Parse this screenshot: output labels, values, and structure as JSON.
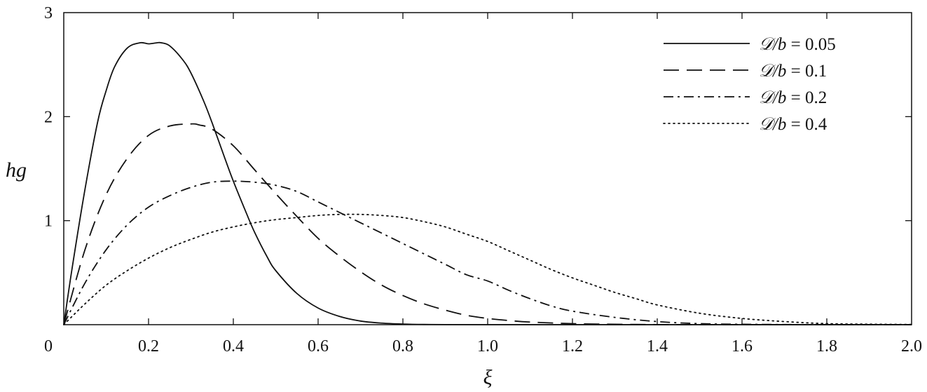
{
  "chart_data": {
    "type": "line",
    "title": "",
    "xlabel": "ξ",
    "ylabel": "hg",
    "xlim": [
      0,
      2.0
    ],
    "ylim": [
      0,
      3
    ],
    "grid": false,
    "legend_position": "top-right",
    "x_ticks": [
      {
        "value": 0,
        "label": "0"
      },
      {
        "value": 0.2,
        "label": "0.2"
      },
      {
        "value": 0.4,
        "label": "0.4"
      },
      {
        "value": 0.6,
        "label": "0.6"
      },
      {
        "value": 0.8,
        "label": "0.8"
      },
      {
        "value": 1.0,
        "label": "1.0"
      },
      {
        "value": 1.2,
        "label": "1.2"
      },
      {
        "value": 1.4,
        "label": "1.4"
      },
      {
        "value": 1.6,
        "label": "1.6"
      },
      {
        "value": 1.8,
        "label": "1.8"
      },
      {
        "value": 2.0,
        "label": "2.0"
      }
    ],
    "y_ticks": [
      {
        "value": 1,
        "label": "1"
      },
      {
        "value": 2,
        "label": "2"
      },
      {
        "value": 3,
        "label": "3"
      }
    ],
    "series": [
      {
        "name": "𝒟/b = 0.05",
        "legend_italic": "𝒟/b",
        "legend_value": " = 0.05",
        "dash": "solid",
        "x": [
          0,
          0.02,
          0.05,
          0.08,
          0.1,
          0.12,
          0.15,
          0.18,
          0.2,
          0.22,
          0.23,
          0.25,
          0.28,
          0.3,
          0.33,
          0.35,
          0.38,
          0.4,
          0.43,
          0.45,
          0.48,
          0.5,
          0.55,
          0.6,
          0.65,
          0.7,
          0.75,
          0.8,
          0.85,
          0.9,
          1.0,
          1.2,
          1.5,
          2.0
        ],
        "y": [
          0,
          0.55,
          1.3,
          1.95,
          2.25,
          2.48,
          2.66,
          2.71,
          2.7,
          2.71,
          2.71,
          2.68,
          2.55,
          2.42,
          2.15,
          1.94,
          1.6,
          1.38,
          1.08,
          0.89,
          0.65,
          0.52,
          0.3,
          0.16,
          0.08,
          0.035,
          0.015,
          0.006,
          0.002,
          0.001,
          0,
          0,
          0,
          0
        ]
      },
      {
        "name": "𝒟/b = 0.1",
        "legend_italic": "𝒟/b",
        "legend_value": " = 0.1",
        "dash": "dashed",
        "x": [
          0,
          0.05,
          0.1,
          0.15,
          0.2,
          0.25,
          0.3,
          0.32,
          0.35,
          0.4,
          0.45,
          0.5,
          0.55,
          0.6,
          0.65,
          0.7,
          0.75,
          0.8,
          0.85,
          0.9,
          0.95,
          1.0,
          1.05,
          1.1,
          1.2,
          1.3,
          1.4,
          1.5,
          1.6,
          2.0
        ],
        "y": [
          0,
          0.72,
          1.25,
          1.6,
          1.82,
          1.91,
          1.93,
          1.92,
          1.88,
          1.72,
          1.49,
          1.26,
          1.04,
          0.83,
          0.66,
          0.51,
          0.38,
          0.28,
          0.2,
          0.14,
          0.09,
          0.06,
          0.04,
          0.025,
          0.01,
          0.004,
          0.001,
          0,
          0,
          0
        ]
      },
      {
        "name": "𝒟/b = 0.2",
        "legend_italic": "𝒟/b",
        "legend_value": " = 0.2",
        "dash": "dashdot",
        "x": [
          0,
          0.05,
          0.1,
          0.15,
          0.2,
          0.25,
          0.3,
          0.35,
          0.4,
          0.45,
          0.5,
          0.55,
          0.6,
          0.65,
          0.7,
          0.75,
          0.8,
          0.85,
          0.9,
          0.95,
          1.0,
          1.05,
          1.1,
          1.15,
          1.2,
          1.3,
          1.4,
          1.5,
          1.6,
          1.8,
          2.0
        ],
        "y": [
          0,
          0.4,
          0.72,
          0.96,
          1.13,
          1.24,
          1.32,
          1.37,
          1.38,
          1.37,
          1.34,
          1.28,
          1.18,
          1.08,
          0.98,
          0.88,
          0.78,
          0.68,
          0.58,
          0.48,
          0.42,
          0.33,
          0.25,
          0.18,
          0.13,
          0.07,
          0.03,
          0.01,
          0.004,
          0,
          0
        ]
      },
      {
        "name": "𝒟/b = 0.4",
        "legend_italic": "𝒟/b",
        "legend_value": " = 0.4",
        "dash": "dotted",
        "x": [
          0,
          0.05,
          0.1,
          0.15,
          0.2,
          0.25,
          0.3,
          0.35,
          0.4,
          0.45,
          0.5,
          0.55,
          0.6,
          0.65,
          0.7,
          0.75,
          0.8,
          0.85,
          0.9,
          0.95,
          1.0,
          1.05,
          1.1,
          1.15,
          1.2,
          1.25,
          1.3,
          1.35,
          1.4,
          1.5,
          1.6,
          1.7,
          1.8,
          1.9,
          2.0
        ],
        "y": [
          0,
          0.2,
          0.38,
          0.52,
          0.64,
          0.74,
          0.82,
          0.89,
          0.94,
          0.98,
          1.01,
          1.03,
          1.05,
          1.06,
          1.06,
          1.05,
          1.03,
          0.99,
          0.94,
          0.87,
          0.8,
          0.71,
          0.62,
          0.53,
          0.45,
          0.38,
          0.31,
          0.25,
          0.19,
          0.11,
          0.06,
          0.03,
          0.01,
          0.005,
          0.002
        ]
      }
    ]
  }
}
